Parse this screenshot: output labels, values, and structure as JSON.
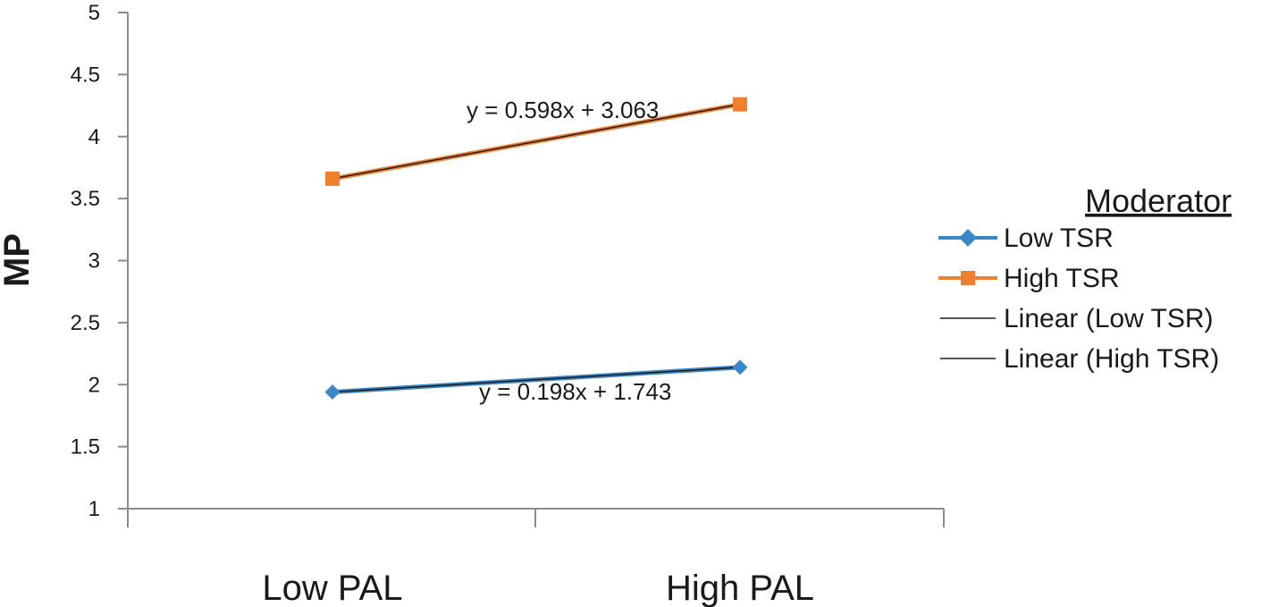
{
  "chart_data": {
    "type": "line",
    "ylabel": "MP",
    "xlabel": "",
    "categories": [
      "Low PAL",
      "High PAL"
    ],
    "ylim": [
      1,
      5
    ],
    "yticks": [
      "1",
      "1.5",
      "2",
      "2.5",
      "3",
      "3.5",
      "4",
      "4.5",
      "5"
    ],
    "grid": false,
    "legend_position": "right",
    "series": [
      {
        "name": "Low TSR",
        "values": [
          1.94,
          2.14
        ],
        "color": "#3a87c8",
        "marker": "diamond"
      },
      {
        "name": "High TSR",
        "values": [
          3.66,
          4.26
        ],
        "color": "#f08030",
        "marker": "square"
      }
    ],
    "trendlines": [
      {
        "name": "Linear (Low TSR)",
        "equation": "y = 0.198x + 1.743",
        "color": "#1a1a1a"
      },
      {
        "name": "Linear (High TSR)",
        "equation": "y = 0.598x + 3.063",
        "color": "#1a1a1a"
      }
    ],
    "legend_title": "Moderator"
  }
}
